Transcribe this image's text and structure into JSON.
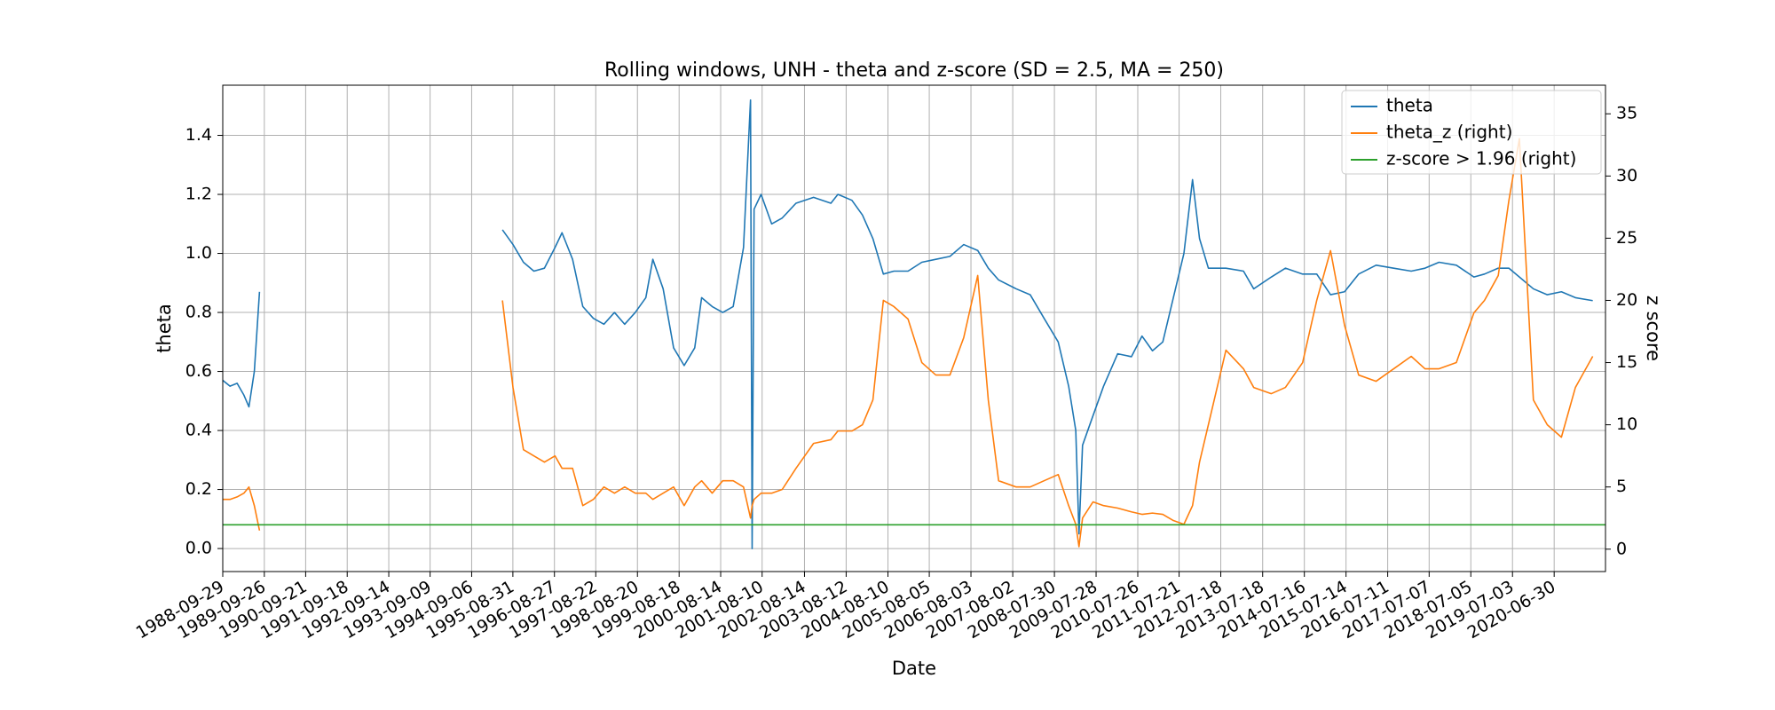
{
  "chart_data": {
    "type": "line",
    "title": "Rolling windows, UNH - theta and z-score (SD = 2.5, MA = 250)",
    "x_label": "Date",
    "y_label": "theta",
    "y2_label": "z score",
    "x": [
      "1988-09-29",
      "1988-12-01",
      "1989-02-01",
      "1989-04-01",
      "1989-05-15",
      "1989-07-01",
      "1989-08-15",
      "1992-06-01",
      "1995-06-01",
      "1995-09-01",
      "1995-12-01",
      "1996-03-01",
      "1996-06-01",
      "1996-09-01",
      "1996-11-01",
      "1997-02-01",
      "1997-05-01",
      "1997-08-01",
      "1997-11-01",
      "1998-02-01",
      "1998-05-01",
      "1998-08-01",
      "1998-11-01",
      "1999-01-01",
      "1999-04-01",
      "1999-07-01",
      "1999-10-01",
      "2000-01-01",
      "2000-03-01",
      "2000-06-01",
      "2000-09-01",
      "2000-12-01",
      "2001-03-01",
      "2001-05-01",
      "2001-05-15",
      "2001-06-01",
      "2001-08-01",
      "2001-11-01",
      "2002-02-01",
      "2002-06-01",
      "2002-11-01",
      "2003-04-01",
      "2003-06-01",
      "2003-10-01",
      "2004-01-01",
      "2004-04-01",
      "2004-07-01",
      "2004-10-01",
      "2005-02-01",
      "2005-06-01",
      "2005-10-01",
      "2006-02-01",
      "2006-06-01",
      "2006-10-01",
      "2007-01-01",
      "2007-04-01",
      "2007-09-01",
      "2008-01-01",
      "2008-05-01",
      "2008-09-01",
      "2008-12-01",
      "2009-02-01",
      "2009-03-01",
      "2009-04-01",
      "2009-07-01",
      "2009-10-01",
      "2010-02-01",
      "2010-06-01",
      "2010-09-01",
      "2010-12-01",
      "2011-03-01",
      "2011-06-01",
      "2011-09-01",
      "2011-11-15",
      "2012-01-15",
      "2012-04-01",
      "2012-09-01",
      "2013-02-01",
      "2013-05-01",
      "2013-10-01",
      "2014-02-01",
      "2014-07-01",
      "2014-11-01",
      "2015-03-01",
      "2015-07-01",
      "2015-11-01",
      "2016-04-01",
      "2016-09-01",
      "2017-02-01",
      "2017-06-01",
      "2017-10-01",
      "2018-03-01",
      "2018-08-01",
      "2018-11-01",
      "2019-03-01",
      "2019-06-01",
      "2019-09-01",
      "2020-01-01",
      "2020-05-01",
      "2020-09-01",
      "2021-01-01",
      "2021-06-01"
    ],
    "series": [
      {
        "name": "theta",
        "color": "#1f77b4",
        "values": [
          0.57,
          0.55,
          0.56,
          0.52,
          0.48,
          0.6,
          0.87,
          null,
          1.08,
          1.03,
          0.97,
          0.94,
          0.95,
          1.02,
          1.07,
          0.98,
          0.82,
          0.78,
          0.76,
          0.8,
          0.76,
          0.8,
          0.85,
          0.98,
          0.88,
          0.68,
          0.62,
          0.68,
          0.85,
          0.82,
          0.8,
          0.82,
          1.02,
          1.52,
          0,
          1.15,
          1.2,
          1.1,
          1.12,
          1.17,
          1.19,
          1.17,
          1.2,
          1.18,
          1.13,
          1.05,
          0.93,
          0.94,
          0.94,
          0.97,
          0.98,
          0.99,
          1.03,
          1.01,
          0.95,
          0.91,
          0.88,
          0.86,
          0.78,
          0.7,
          0.55,
          0.4,
          0.05,
          0.35,
          0.45,
          0.55,
          0.66,
          0.65,
          0.72,
          0.67,
          0.7,
          0.85,
          1.0,
          1.25,
          1.05,
          0.95,
          0.95,
          0.94,
          0.88,
          0.92,
          0.95,
          0.93,
          0.93,
          0.86,
          0.87,
          0.93,
          0.96,
          0.95,
          0.94,
          0.95,
          0.97,
          0.96,
          0.92,
          0.93,
          0.95,
          0.95,
          0.92,
          0.88,
          0.86,
          0.87,
          0.85,
          0.84
        ]
      },
      {
        "name": "theta_z (right)",
        "color": "#ff7f0e",
        "axis": "y2",
        "values": [
          4.0,
          4.0,
          4.2,
          4.5,
          5.0,
          3.5,
          1.5,
          null,
          20,
          13,
          8,
          7.5,
          7,
          7.5,
          6.5,
          6.5,
          3.5,
          4,
          5,
          4.5,
          5,
          4.5,
          4.5,
          4,
          4.5,
          5,
          3.5,
          5,
          5.5,
          4.5,
          5.5,
          5.5,
          5,
          2.5,
          3.5,
          4,
          4.5,
          4.5,
          4.8,
          6.5,
          8.5,
          8.8,
          9.5,
          9.5,
          10,
          12,
          20,
          19.5,
          18.5,
          15,
          14,
          14,
          17,
          22,
          12,
          5.5,
          5,
          5,
          5.5,
          6,
          3.5,
          2,
          0.2,
          2.5,
          3.8,
          3.5,
          3.3,
          3,
          2.8,
          2.9,
          2.8,
          2.3,
          2,
          3.5,
          7,
          10,
          16,
          14.5,
          13,
          12.5,
          13,
          15,
          20,
          24,
          18,
          14,
          13.5,
          14.5,
          15.5,
          14.5,
          14.5,
          15,
          19,
          20,
          22,
          28,
          33,
          12,
          10,
          9,
          13,
          15.5
        ]
      },
      {
        "name": "z-score > 1.96 (right)",
        "color": "#2ca02c",
        "axis": "y2",
        "x": [
          "1988-09-29",
          "2021-09-20"
        ],
        "values": [
          1.96,
          1.96
        ]
      }
    ],
    "xlim": [
      "1988-09-29",
      "2021-09-20"
    ],
    "xticks": [
      "1988-09-29",
      "1989-09-26",
      "1990-09-21",
      "1991-09-18",
      "1992-09-14",
      "1993-09-09",
      "1994-09-06",
      "1995-08-31",
      "1996-08-27",
      "1997-08-22",
      "1998-08-20",
      "1999-08-18",
      "2000-08-14",
      "2001-08-10",
      "2002-08-14",
      "2003-08-12",
      "2004-08-10",
      "2005-08-05",
      "2006-08-03",
      "2007-08-02",
      "2008-07-30",
      "2009-07-28",
      "2010-07-26",
      "2011-07-21",
      "2012-07-18",
      "2013-07-18",
      "2014-07-16",
      "2015-07-14",
      "2016-07-11",
      "2017-07-07",
      "2018-07-05",
      "2019-07-03",
      "2020-06-30"
    ],
    "ylim": [
      -0.078,
      1.57
    ],
    "yticks": [
      {
        "value": 0,
        "label": "0.0"
      },
      {
        "value": 0.2,
        "label": "0.2"
      },
      {
        "value": 0.4,
        "label": "0.4"
      },
      {
        "value": 0.6,
        "label": "0.6"
      },
      {
        "value": 0.8,
        "label": "0.8"
      },
      {
        "value": 1,
        "label": "1.0"
      },
      {
        "value": 1.2,
        "label": "1.2"
      },
      {
        "value": 1.4,
        "label": "1.4"
      }
    ],
    "y2lim": [
      -1.8,
      37.3
    ],
    "y2ticks": [
      0,
      5,
      10,
      15,
      20,
      25,
      30,
      35
    ],
    "grid": true,
    "legend": "upper right"
  }
}
